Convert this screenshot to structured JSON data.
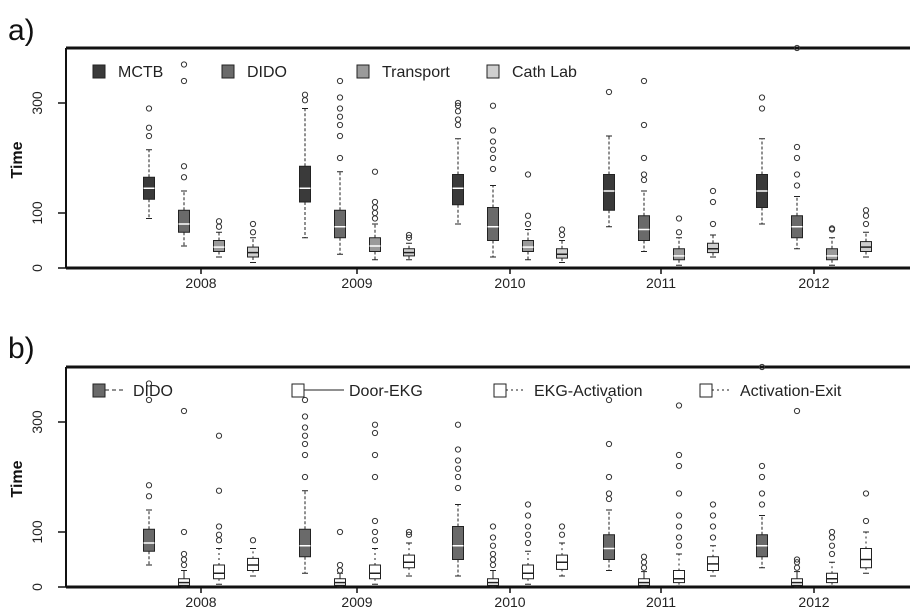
{
  "chart_data": [
    {
      "panel_label": "a)",
      "type": "boxplot",
      "ylabel": "Time",
      "ylim": [
        0,
        400
      ],
      "yticks": [
        0,
        100,
        300
      ],
      "categories": [
        "2008",
        "2009",
        "2010",
        "2011",
        "2012"
      ],
      "legend_placement": "top",
      "series": [
        {
          "name": "MCTB",
          "color": "#3a3a3a",
          "boxes": [
            {
              "min": 90,
              "q1": 125,
              "median": 145,
              "q3": 165,
              "max": 215,
              "outliers": [
                240,
                255,
                290
              ]
            },
            {
              "min": 55,
              "q1": 120,
              "median": 145,
              "q3": 185,
              "max": 290,
              "outliers": [
                305,
                315
              ]
            },
            {
              "min": 80,
              "q1": 115,
              "median": 145,
              "q3": 170,
              "max": 235,
              "outliers": [
                260,
                270,
                285,
                295,
                300
              ]
            },
            {
              "min": 75,
              "q1": 105,
              "median": 140,
              "q3": 170,
              "max": 240,
              "outliers": [
                320
              ]
            },
            {
              "min": 80,
              "q1": 110,
              "median": 140,
              "q3": 170,
              "max": 235,
              "outliers": [
                290,
                310
              ]
            }
          ]
        },
        {
          "name": "DIDO",
          "color": "#6a6a6a",
          "boxes": [
            {
              "min": 40,
              "q1": 65,
              "median": 80,
              "q3": 105,
              "max": 140,
              "outliers": [
                165,
                185,
                340,
                370
              ]
            },
            {
              "min": 25,
              "q1": 55,
              "median": 75,
              "q3": 105,
              "max": 175,
              "outliers": [
                200,
                240,
                260,
                275,
                290,
                310,
                340
              ]
            },
            {
              "min": 20,
              "q1": 50,
              "median": 75,
              "q3": 110,
              "max": 150,
              "outliers": [
                180,
                200,
                215,
                230,
                250,
                295
              ]
            },
            {
              "min": 30,
              "q1": 50,
              "median": 70,
              "q3": 95,
              "max": 140,
              "outliers": [
                160,
                170,
                200,
                260,
                340
              ]
            },
            {
              "min": 35,
              "q1": 55,
              "median": 75,
              "q3": 95,
              "max": 130,
              "outliers": [
                150,
                170,
                200,
                220,
                400
              ]
            }
          ]
        },
        {
          "name": "Transport",
          "color": "#9a9a9a",
          "boxes": [
            {
              "min": 20,
              "q1": 30,
              "median": 38,
              "q3": 50,
              "max": 65,
              "outliers": [
                75,
                85
              ]
            },
            {
              "min": 15,
              "q1": 30,
              "median": 40,
              "q3": 55,
              "max": 80,
              "outliers": [
                90,
                100,
                110,
                120,
                175
              ]
            },
            {
              "min": 15,
              "q1": 30,
              "median": 38,
              "q3": 50,
              "max": 70,
              "outliers": [
                80,
                95,
                170
              ]
            },
            {
              "min": 5,
              "q1": 15,
              "median": 22,
              "q3": 35,
              "max": 55,
              "outliers": [
                65,
                90
              ]
            },
            {
              "min": 5,
              "q1": 15,
              "median": 22,
              "q3": 35,
              "max": 55,
              "outliers": [
                70,
                72
              ]
            }
          ]
        },
        {
          "name": "Cath Lab",
          "color": "#cfcfcf",
          "boxes": [
            {
              "min": 10,
              "q1": 20,
              "median": 28,
              "q3": 38,
              "max": 55,
              "outliers": [
                65,
                80
              ]
            },
            {
              "min": 15,
              "q1": 22,
              "median": 28,
              "q3": 35,
              "max": 45,
              "outliers": [
                55,
                60
              ]
            },
            {
              "min": 10,
              "q1": 18,
              "median": 25,
              "q3": 35,
              "max": 50,
              "outliers": [
                60,
                70
              ]
            },
            {
              "min": 20,
              "q1": 28,
              "median": 35,
              "q3": 45,
              "max": 60,
              "outliers": [
                80,
                120,
                140
              ]
            },
            {
              "min": 20,
              "q1": 30,
              "median": 38,
              "q3": 48,
              "max": 65,
              "outliers": [
                80,
                95,
                105
              ]
            }
          ]
        }
      ]
    },
    {
      "panel_label": "b)",
      "type": "boxplot",
      "ylabel": "Time",
      "ylim": [
        0,
        400
      ],
      "yticks": [
        0,
        100,
        300
      ],
      "categories": [
        "2008",
        "2009",
        "2010",
        "2011",
        "2012"
      ],
      "legend_placement": "top",
      "series": [
        {
          "name": "DIDO",
          "color": "#6a6a6a",
          "boxes": [
            {
              "min": 40,
              "q1": 65,
              "median": 80,
              "q3": 105,
              "max": 140,
              "outliers": [
                165,
                185,
                340,
                370
              ]
            },
            {
              "min": 25,
              "q1": 55,
              "median": 75,
              "q3": 105,
              "max": 175,
              "outliers": [
                200,
                240,
                260,
                275,
                290,
                310,
                340
              ]
            },
            {
              "min": 20,
              "q1": 50,
              "median": 75,
              "q3": 110,
              "max": 150,
              "outliers": [
                180,
                200,
                215,
                230,
                250,
                295
              ]
            },
            {
              "min": 30,
              "q1": 50,
              "median": 70,
              "q3": 95,
              "max": 140,
              "outliers": [
                160,
                170,
                200,
                260,
                340
              ]
            },
            {
              "min": 35,
              "q1": 55,
              "median": 75,
              "q3": 95,
              "max": 130,
              "outliers": [
                150,
                170,
                200,
                220,
                400
              ]
            }
          ]
        },
        {
          "name": "Door-EKG",
          "color": "#ffffff",
          "boxes": [
            {
              "min": 0,
              "q1": 3,
              "median": 8,
              "q3": 15,
              "max": 30,
              "outliers": [
                40,
                50,
                60,
                100,
                320
              ]
            },
            {
              "min": 0,
              "q1": 3,
              "median": 8,
              "q3": 15,
              "max": 25,
              "outliers": [
                30,
                40,
                100
              ]
            },
            {
              "min": 0,
              "q1": 3,
              "median": 8,
              "q3": 15,
              "max": 30,
              "outliers": [
                40,
                50,
                60,
                75,
                90,
                110
              ]
            },
            {
              "min": 0,
              "q1": 3,
              "median": 8,
              "q3": 15,
              "max": 28,
              "outliers": [
                35,
                45,
                55
              ]
            },
            {
              "min": 0,
              "q1": 3,
              "median": 8,
              "q3": 15,
              "max": 28,
              "outliers": [
                35,
                45,
                50,
                320
              ]
            }
          ]
        },
        {
          "name": "EKG-Activation",
          "color": "#ffffff",
          "boxes": [
            {
              "min": 5,
              "q1": 15,
              "median": 25,
              "q3": 40,
              "max": 70,
              "outliers": [
                85,
                95,
                110,
                175,
                275
              ]
            },
            {
              "min": 5,
              "q1": 15,
              "median": 25,
              "q3": 40,
              "max": 70,
              "outliers": [
                85,
                100,
                120,
                200,
                240,
                280,
                295
              ]
            },
            {
              "min": 5,
              "q1": 15,
              "median": 25,
              "q3": 40,
              "max": 65,
              "outliers": [
                80,
                95,
                110,
                130,
                150
              ]
            },
            {
              "min": 2,
              "q1": 8,
              "median": 15,
              "q3": 30,
              "max": 60,
              "outliers": [
                75,
                90,
                110,
                130,
                170,
                220,
                240,
                330
              ]
            },
            {
              "min": 2,
              "q1": 8,
              "median": 15,
              "q3": 25,
              "max": 45,
              "outliers": [
                60,
                75,
                90,
                100
              ]
            }
          ]
        },
        {
          "name": "Activation-Exit",
          "color": "#ffffff",
          "boxes": [
            {
              "min": 20,
              "q1": 30,
              "median": 40,
              "q3": 52,
              "max": 70,
              "outliers": [
                85
              ]
            },
            {
              "min": 20,
              "q1": 35,
              "median": 45,
              "q3": 58,
              "max": 80,
              "outliers": [
                95,
                100
              ]
            },
            {
              "min": 20,
              "q1": 32,
              "median": 45,
              "q3": 58,
              "max": 80,
              "outliers": [
                95,
                110
              ]
            },
            {
              "min": 20,
              "q1": 30,
              "median": 42,
              "q3": 55,
              "max": 75,
              "outliers": [
                90,
                110,
                130,
                150
              ]
            },
            {
              "min": 25,
              "q1": 35,
              "median": 50,
              "q3": 70,
              "max": 100,
              "outliers": [
                120,
                170
              ]
            }
          ]
        }
      ]
    }
  ]
}
